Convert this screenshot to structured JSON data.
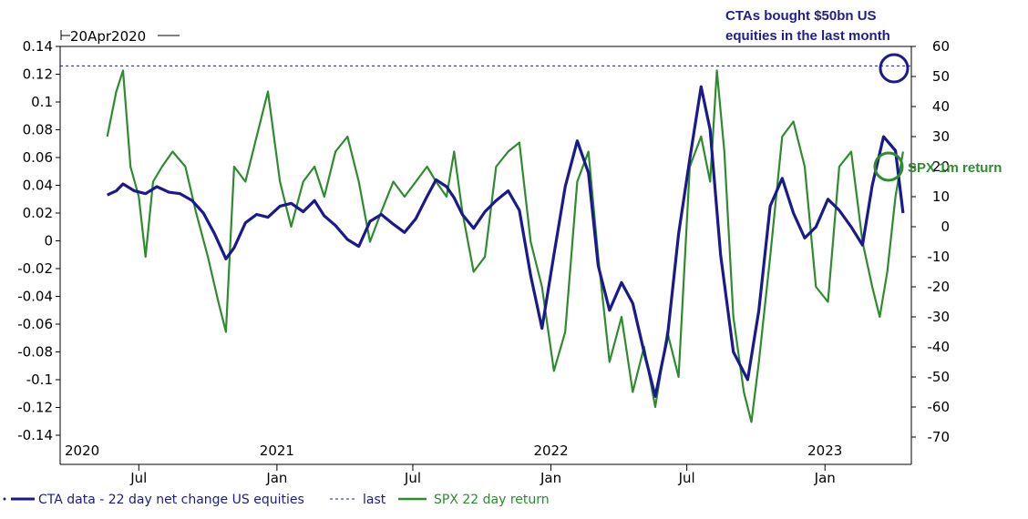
{
  "chart_data": {
    "type": "line",
    "header_label": "20Apr2020",
    "x_start": "2020-04-20",
    "x_end": "2023-04-20",
    "year_labels": [
      {
        "date": "2020-01-01",
        "label": "2020"
      },
      {
        "date": "2021-01-01",
        "label": "2021"
      },
      {
        "date": "2022-01-01",
        "label": "2022"
      },
      {
        "date": "2023-01-01",
        "label": "2023"
      }
    ],
    "month_labels": [
      {
        "date": "2020-07-01",
        "label": "Jul"
      },
      {
        "date": "2021-01-01",
        "label": "Jan"
      },
      {
        "date": "2021-07-01",
        "label": "Jul"
      },
      {
        "date": "2022-01-01",
        "label": "Jan"
      },
      {
        "date": "2022-07-01",
        "label": "Jul"
      },
      {
        "date": "2023-01-01",
        "label": "Jan"
      }
    ],
    "left_axis": {
      "ylim": [
        -0.14,
        0.14
      ],
      "ticks": [
        "0.14",
        "0.12",
        "0.1",
        "0.08",
        "0.06",
        "0.04",
        "0.02",
        "0",
        "-0.02",
        "-0.04",
        "-0.06",
        "-0.08",
        "-0.1",
        "-0.12",
        "-0.14"
      ]
    },
    "right_axis": {
      "ylim": [
        -70,
        60
      ],
      "ticks": [
        "60",
        "50",
        "40",
        "30",
        "20",
        "10",
        "0",
        "-10",
        "-20",
        "-30",
        "-40",
        "-50",
        "-60",
        "-70"
      ]
    },
    "last_value": 0.126,
    "series": [
      {
        "name": "CTA data - 22 day net change US equities",
        "axis": "left",
        "color": "#1a1a8c",
        "points": [
          [
            "2020-05-20",
            0.033
          ],
          [
            "2020-06-01",
            0.036
          ],
          [
            "2020-06-10",
            0.041
          ],
          [
            "2020-06-25",
            0.036
          ],
          [
            "2020-07-10",
            0.034
          ],
          [
            "2020-07-25",
            0.039
          ],
          [
            "2020-08-10",
            0.035
          ],
          [
            "2020-08-25",
            0.034
          ],
          [
            "2020-09-10",
            0.029
          ],
          [
            "2020-09-25",
            0.02
          ],
          [
            "2020-10-10",
            0.005
          ],
          [
            "2020-10-25",
            -0.013
          ],
          [
            "2020-11-05",
            -0.005
          ],
          [
            "2020-11-20",
            0.013
          ],
          [
            "2020-12-05",
            0.019
          ],
          [
            "2020-12-20",
            0.017
          ],
          [
            "2021-01-05",
            0.025
          ],
          [
            "2021-01-20",
            0.027
          ],
          [
            "2021-02-05",
            0.021
          ],
          [
            "2021-02-20",
            0.029
          ],
          [
            "2021-03-05",
            0.018
          ],
          [
            "2021-03-20",
            0.011
          ],
          [
            "2021-04-05",
            0.001
          ],
          [
            "2021-04-20",
            -0.004
          ],
          [
            "2021-05-05",
            0.014
          ],
          [
            "2021-05-20",
            0.019
          ],
          [
            "2021-06-05",
            0.012
          ],
          [
            "2021-06-20",
            0.006
          ],
          [
            "2021-07-05",
            0.016
          ],
          [
            "2021-07-20",
            0.032
          ],
          [
            "2021-08-01",
            0.044
          ],
          [
            "2021-08-15",
            0.039
          ],
          [
            "2021-08-25",
            0.031
          ],
          [
            "2021-09-05",
            0.019
          ],
          [
            "2021-09-20",
            0.009
          ],
          [
            "2021-10-05",
            0.021
          ],
          [
            "2021-10-20",
            0.029
          ],
          [
            "2021-11-05",
            0.036
          ],
          [
            "2021-11-20",
            0.022
          ],
          [
            "2021-12-05",
            -0.025
          ],
          [
            "2021-12-20",
            -0.063
          ],
          [
            "2022-01-05",
            -0.01
          ],
          [
            "2022-01-20",
            0.039
          ],
          [
            "2022-02-05",
            0.072
          ],
          [
            "2022-02-20",
            0.049
          ],
          [
            "2022-03-05",
            -0.018
          ],
          [
            "2022-03-20",
            -0.05
          ],
          [
            "2022-04-05",
            -0.03
          ],
          [
            "2022-04-20",
            -0.045
          ],
          [
            "2022-05-05",
            -0.08
          ],
          [
            "2022-05-20",
            -0.112
          ],
          [
            "2022-06-05",
            -0.07
          ],
          [
            "2022-06-20",
            0.005
          ],
          [
            "2022-07-05",
            0.059
          ],
          [
            "2022-07-20",
            0.111
          ],
          [
            "2022-08-01",
            0.08
          ],
          [
            "2022-08-15",
            -0.01
          ],
          [
            "2022-09-01",
            -0.08
          ],
          [
            "2022-09-20",
            -0.1
          ],
          [
            "2022-10-05",
            -0.05
          ],
          [
            "2022-10-20",
            0.025
          ],
          [
            "2022-11-05",
            0.045
          ],
          [
            "2022-11-20",
            0.02
          ],
          [
            "2022-12-05",
            0.002
          ],
          [
            "2022-12-20",
            0.01
          ],
          [
            "2023-01-05",
            0.03
          ],
          [
            "2023-01-20",
            0.022
          ],
          [
            "2023-02-05",
            0.01
          ],
          [
            "2023-02-20",
            -0.003
          ],
          [
            "2023-03-05",
            0.04
          ],
          [
            "2023-03-20",
            0.075
          ],
          [
            "2023-04-05",
            0.065
          ],
          [
            "2023-04-15",
            0.02
          ]
        ]
      },
      {
        "name": "SPX 22 day return",
        "axis": "right",
        "color": "#2e8b2e",
        "points": [
          [
            "2020-05-20",
            30
          ],
          [
            "2020-06-01",
            45
          ],
          [
            "2020-06-10",
            52
          ],
          [
            "2020-06-20",
            20
          ],
          [
            "2020-07-01",
            10
          ],
          [
            "2020-07-10",
            -10
          ],
          [
            "2020-07-20",
            15
          ],
          [
            "2020-08-01",
            20
          ],
          [
            "2020-08-15",
            25
          ],
          [
            "2020-09-01",
            20
          ],
          [
            "2020-09-15",
            5
          ],
          [
            "2020-10-01",
            -10
          ],
          [
            "2020-10-15",
            -25
          ],
          [
            "2020-10-25",
            -35
          ],
          [
            "2020-11-05",
            20
          ],
          [
            "2020-11-20",
            15
          ],
          [
            "2020-12-05",
            30
          ],
          [
            "2020-12-20",
            45
          ],
          [
            "2021-01-05",
            15
          ],
          [
            "2021-01-20",
            0
          ],
          [
            "2021-02-05",
            15
          ],
          [
            "2021-02-20",
            20
          ],
          [
            "2021-03-05",
            10
          ],
          [
            "2021-03-20",
            25
          ],
          [
            "2021-04-05",
            30
          ],
          [
            "2021-04-20",
            15
          ],
          [
            "2021-05-05",
            -5
          ],
          [
            "2021-05-20",
            5
          ],
          [
            "2021-06-05",
            15
          ],
          [
            "2021-06-20",
            10
          ],
          [
            "2021-07-05",
            15
          ],
          [
            "2021-07-20",
            20
          ],
          [
            "2021-08-01",
            15
          ],
          [
            "2021-08-15",
            10
          ],
          [
            "2021-08-25",
            25
          ],
          [
            "2021-09-05",
            5
          ],
          [
            "2021-09-20",
            -15
          ],
          [
            "2021-10-05",
            -10
          ],
          [
            "2021-10-20",
            20
          ],
          [
            "2021-11-05",
            25
          ],
          [
            "2021-11-20",
            28
          ],
          [
            "2021-12-05",
            -5
          ],
          [
            "2021-12-20",
            -20
          ],
          [
            "2022-01-05",
            -48
          ],
          [
            "2022-01-20",
            -35
          ],
          [
            "2022-02-05",
            15
          ],
          [
            "2022-02-20",
            25
          ],
          [
            "2022-03-05",
            -10
          ],
          [
            "2022-03-20",
            -45
          ],
          [
            "2022-04-05",
            -30
          ],
          [
            "2022-04-20",
            -55
          ],
          [
            "2022-05-05",
            -40
          ],
          [
            "2022-05-20",
            -60
          ],
          [
            "2022-06-05",
            -35
          ],
          [
            "2022-06-20",
            -50
          ],
          [
            "2022-07-05",
            20
          ],
          [
            "2022-07-20",
            30
          ],
          [
            "2022-08-01",
            15
          ],
          [
            "2022-08-10",
            52
          ],
          [
            "2022-08-20",
            25
          ],
          [
            "2022-09-01",
            -30
          ],
          [
            "2022-09-15",
            -55
          ],
          [
            "2022-09-25",
            -65
          ],
          [
            "2022-10-05",
            -45
          ],
          [
            "2022-10-20",
            -10
          ],
          [
            "2022-11-05",
            30
          ],
          [
            "2022-11-20",
            35
          ],
          [
            "2022-12-05",
            20
          ],
          [
            "2022-12-20",
            -20
          ],
          [
            "2023-01-05",
            -25
          ],
          [
            "2023-01-20",
            20
          ],
          [
            "2023-02-05",
            25
          ],
          [
            "2023-02-20",
            -5
          ],
          [
            "2023-03-05",
            -20
          ],
          [
            "2023-03-15",
            -30
          ],
          [
            "2023-03-25",
            -15
          ],
          [
            "2023-04-05",
            10
          ],
          [
            "2023-04-15",
            25
          ]
        ]
      }
    ],
    "annotations": [
      {
        "text": [
          "CTAs bought $50bn US",
          "equities in the last month"
        ],
        "color": "#1f1f8c"
      },
      {
        "text": [
          "SPX 1m return"
        ],
        "color": "#2e8b2e"
      }
    ],
    "legend": {
      "placement": "bottom",
      "entries": [
        {
          "label": "CTA data - 22 day net change US equities",
          "color": "#1a1a8c",
          "style": "solid"
        },
        {
          "label": "last",
          "color": "#1a1a8c",
          "style": "dashed"
        },
        {
          "label": "SPX 22 day return",
          "color": "#2e8b2e",
          "style": "solid"
        }
      ]
    }
  }
}
